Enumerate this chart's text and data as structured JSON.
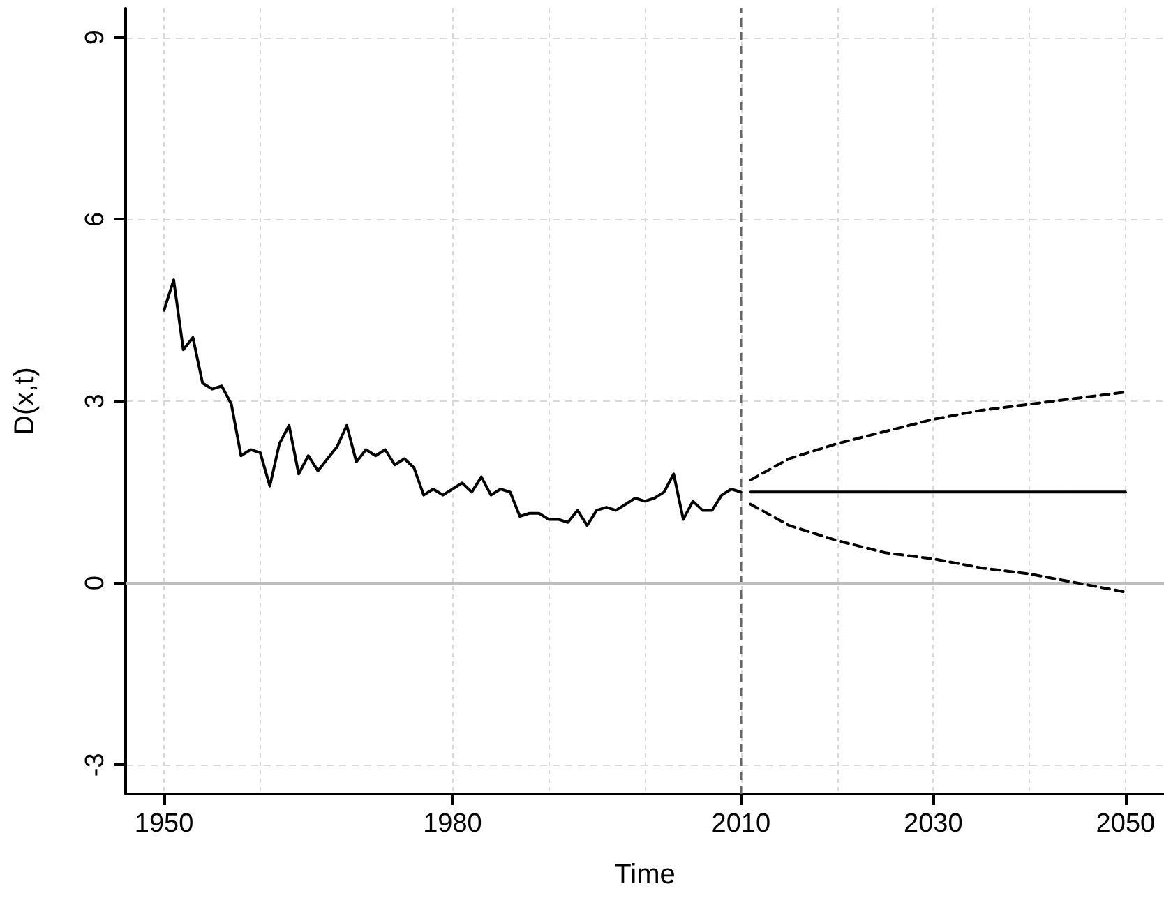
{
  "chart_data": {
    "type": "line",
    "xlabel": "Time",
    "ylabel": "D(x,t)",
    "xlim": [
      1946,
      2054
    ],
    "ylim": [
      -3.48,
      9.48
    ],
    "xticks": [
      1950,
      {
        "value": 1960,
        "label": null
      },
      1980,
      {
        "value": 1990,
        "label": null
      },
      {
        "value": 2000,
        "label": null
      },
      2010,
      {
        "value": 2020,
        "label": null
      },
      2030,
      {
        "value": 2040,
        "label": null
      },
      2050
    ],
    "yticks": [
      -3,
      0,
      3,
      6,
      9
    ],
    "grid": true,
    "marker": "none",
    "ref_lines": [
      {
        "axis": "x",
        "value": 2010,
        "color": "#666666",
        "line_style": "dashed"
      },
      {
        "axis": "y",
        "value": 0,
        "color": "#bebebe",
        "line_style": "solid"
      }
    ],
    "series": [
      {
        "color": "#000000",
        "line_style": "solid",
        "x": [
          1950,
          1951,
          1952,
          1953,
          1954,
          1955,
          1956,
          1957,
          1958,
          1959,
          1960,
          1961,
          1962,
          1963,
          1964,
          1965,
          1966,
          1967,
          1968,
          1969,
          1970,
          1971,
          1972,
          1973,
          1974,
          1975,
          1976,
          1977,
          1978,
          1979,
          1980,
          1981,
          1982,
          1983,
          1984,
          1985,
          1986,
          1987,
          1988,
          1989,
          1990,
          1991,
          1992,
          1993,
          1994,
          1995,
          1996,
          1997,
          1998,
          1999,
          2000,
          2001,
          2002,
          2003,
          2004,
          2005,
          2006,
          2007,
          2008,
          2009,
          2010
        ],
        "values": [
          4.5,
          5.0,
          3.85,
          4.05,
          3.3,
          3.2,
          3.25,
          2.95,
          2.1,
          2.2,
          2.15,
          1.6,
          2.3,
          2.6,
          1.8,
          2.1,
          1.85,
          2.05,
          2.25,
          2.6,
          2.0,
          2.2,
          2.1,
          2.2,
          1.95,
          2.05,
          1.9,
          1.45,
          1.55,
          1.45,
          1.55,
          1.65,
          1.5,
          1.75,
          1.45,
          1.55,
          1.5,
          1.1,
          1.15,
          1.15,
          1.05,
          1.05,
          1.0,
          1.2,
          0.95,
          1.2,
          1.25,
          1.2,
          1.3,
          1.4,
          1.35,
          1.4,
          1.5,
          1.8,
          1.05,
          1.35,
          1.2,
          1.2,
          1.45,
          1.55,
          1.5
        ]
      },
      {
        "color": "#000000",
        "line_style": "solid",
        "x": [
          2011,
          2050
        ],
        "values": [
          1.5,
          1.5
        ]
      },
      {
        "color": "#000000",
        "line_style": "dashed",
        "x": [
          2011,
          2015,
          2020,
          2025,
          2030,
          2035,
          2040,
          2045,
          2050
        ],
        "values": [
          1.7,
          2.05,
          2.3,
          2.5,
          2.7,
          2.85,
          2.95,
          3.05,
          3.15
        ]
      },
      {
        "color": "#000000",
        "line_style": "dashed",
        "x": [
          2011,
          2015,
          2020,
          2025,
          2030,
          2035,
          2040,
          2045,
          2050
        ],
        "values": [
          1.3,
          0.95,
          0.7,
          0.5,
          0.4,
          0.25,
          0.15,
          0.0,
          -0.15
        ]
      }
    ]
  }
}
